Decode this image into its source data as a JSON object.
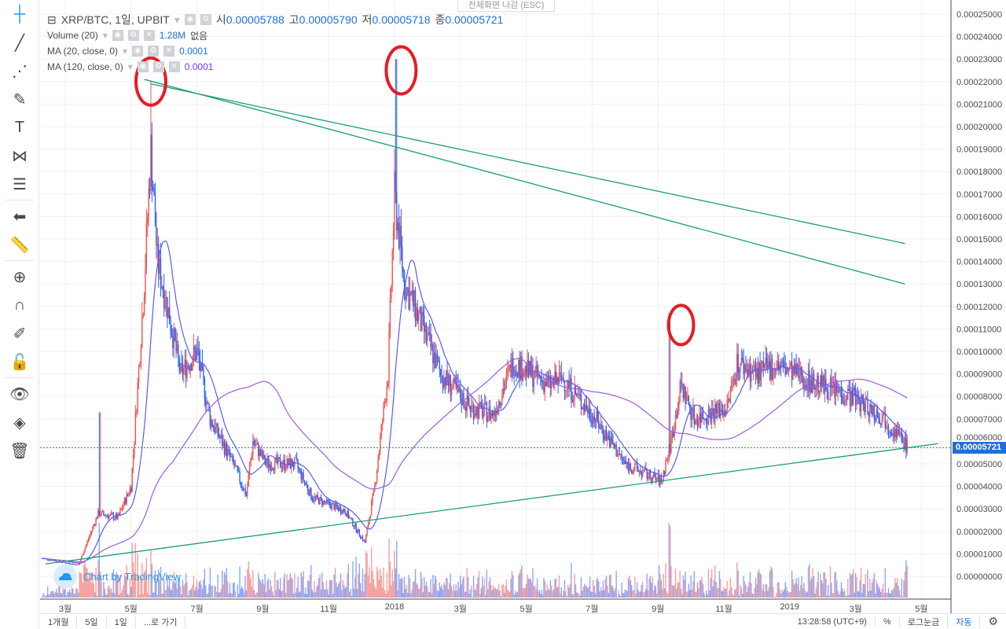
{
  "header": {
    "symbol": "XRP/BTC, 1일, UPBIT",
    "o_label": "시",
    "o": "0.00005788",
    "h_label": "고",
    "h": "0.00005790",
    "l_label": "저",
    "l": "0.00005718",
    "c_label": "종",
    "c": "0.00005721",
    "exit_fullscreen": "전체화면 나감 (ESC)"
  },
  "indicators": [
    {
      "name": "Volume (20)",
      "value": "1.28M",
      "extra": "없음"
    },
    {
      "name": "MA (20, close, 0)",
      "value": "0.0001"
    },
    {
      "name": "MA (120, close, 0)",
      "value": "0.0001"
    }
  ],
  "toolbar": [
    "crosshair-icon",
    "trend-line-icon",
    "pitchfork-icon",
    "brush-icon",
    "text-icon",
    "pattern-icon",
    "prediction-icon",
    "back-arrow-icon",
    "ruler-icon",
    "zoom-in-icon",
    "magnet-icon",
    "lock-drawing-icon",
    "unlock-icon",
    "eye-icon",
    "layers-icon",
    "trash-icon"
  ],
  "bottom": {
    "ranges": [
      "1개월",
      "5일",
      "1일",
      "...로 가기"
    ],
    "time": "13:28:58 (UTC+9)",
    "percent": "%",
    "log": "로그눈금",
    "auto": "자동"
  },
  "watermark": "Chart by TradingView",
  "colors": {
    "up": "#ef5350",
    "down": "#2962ff",
    "ma20": "#5b5bf0",
    "ma120": "#9b5de5",
    "trend": "#1a9e7a",
    "annot": "#e51c23"
  },
  "chart_data": {
    "type": "candlestick",
    "title": "XRP/BTC, 1일, UPBIT",
    "ylim": [
      0,
      0.00025
    ],
    "y_ticks": [
      "0.00025000",
      "0.00024000",
      "0.00023000",
      "0.00022000",
      "0.00021000",
      "0.00020000",
      "0.00019000",
      "0.00018000",
      "0.00017000",
      "0.00016000",
      "0.00015000",
      "0.00014000",
      "0.00013000",
      "0.00012000",
      "0.00011000",
      "0.00010000",
      "0.00009000",
      "0.00008000",
      "0.00007000",
      "0.00006000",
      "0.00005000",
      "0.00004000",
      "0.00003000",
      "0.00002000",
      "0.00001000",
      "0.00000000"
    ],
    "x_ticks": [
      "3월",
      "5월",
      "7월",
      "9월",
      "11월",
      "2018",
      "3월",
      "5월",
      "7월",
      "9월",
      "11월",
      "2019",
      "3월",
      "5월"
    ],
    "x_tick_months": [
      2,
      4,
      6,
      8,
      10,
      12,
      14,
      16,
      18,
      20,
      22,
      24,
      26,
      28
    ],
    "price_path_month_vs_1e5": [
      [
        1.3,
        0.8
      ],
      [
        2.4,
        0.5
      ],
      [
        3.0,
        2.8
      ],
      [
        3.6,
        2.6
      ],
      [
        4.0,
        4
      ],
      [
        4.4,
        13
      ],
      [
        4.6,
        19
      ],
      [
        4.8,
        14
      ],
      [
        5.1,
        12
      ],
      [
        5.5,
        9
      ],
      [
        6.0,
        10
      ],
      [
        6.4,
        7
      ],
      [
        7.1,
        5
      ],
      [
        7.5,
        3.6
      ],
      [
        7.7,
        6
      ],
      [
        8.1,
        5
      ],
      [
        9.0,
        5
      ],
      [
        9.5,
        3.5
      ],
      [
        10.5,
        2.9
      ],
      [
        11.1,
        1.5
      ],
      [
        11.4,
        4
      ],
      [
        11.8,
        9
      ],
      [
        12.0,
        17
      ],
      [
        12.3,
        13
      ],
      [
        12.6,
        12
      ],
      [
        13.4,
        9
      ],
      [
        14.3,
        7.5
      ],
      [
        15.0,
        7.2
      ],
      [
        15.6,
        9.5
      ],
      [
        16.7,
        8.5
      ],
      [
        17.1,
        8.8
      ],
      [
        18.1,
        7
      ],
      [
        19.0,
        5
      ],
      [
        20.1,
        4.2
      ],
      [
        20.4,
        6
      ],
      [
        20.7,
        8.5
      ],
      [
        21.1,
        7
      ],
      [
        22.1,
        7.5
      ],
      [
        22.4,
        9.5
      ],
      [
        23.0,
        9
      ],
      [
        23.6,
        9.4
      ],
      [
        24.7,
        8.6
      ],
      [
        25.9,
        8
      ],
      [
        26.9,
        7
      ],
      [
        27.6,
        5.7
      ]
    ],
    "spikes_month_vs_high_1e5": [
      [
        3.05,
        7.3
      ],
      [
        4.6,
        22
      ],
      [
        12.05,
        23
      ],
      [
        20.35,
        11.7
      ],
      [
        24.3,
        9.7
      ]
    ],
    "last_price": "0.00005721",
    "trendlines_month_price": [
      [
        [
          4.4,
          0.000221
        ],
        [
          27.5,
          0.00013
        ]
      ],
      [
        [
          4.6,
          0.000219
        ],
        [
          27.5,
          0.000148
        ]
      ],
      [
        [
          1.4,
          5.5e-06
        ],
        [
          28.5,
          5.9e-05
        ]
      ]
    ],
    "annotations_month_price": [
      [
        4.6,
        0.00022
      ],
      [
        12.2,
        0.000225
      ],
      [
        20.7,
        0.00011
      ]
    ]
  }
}
